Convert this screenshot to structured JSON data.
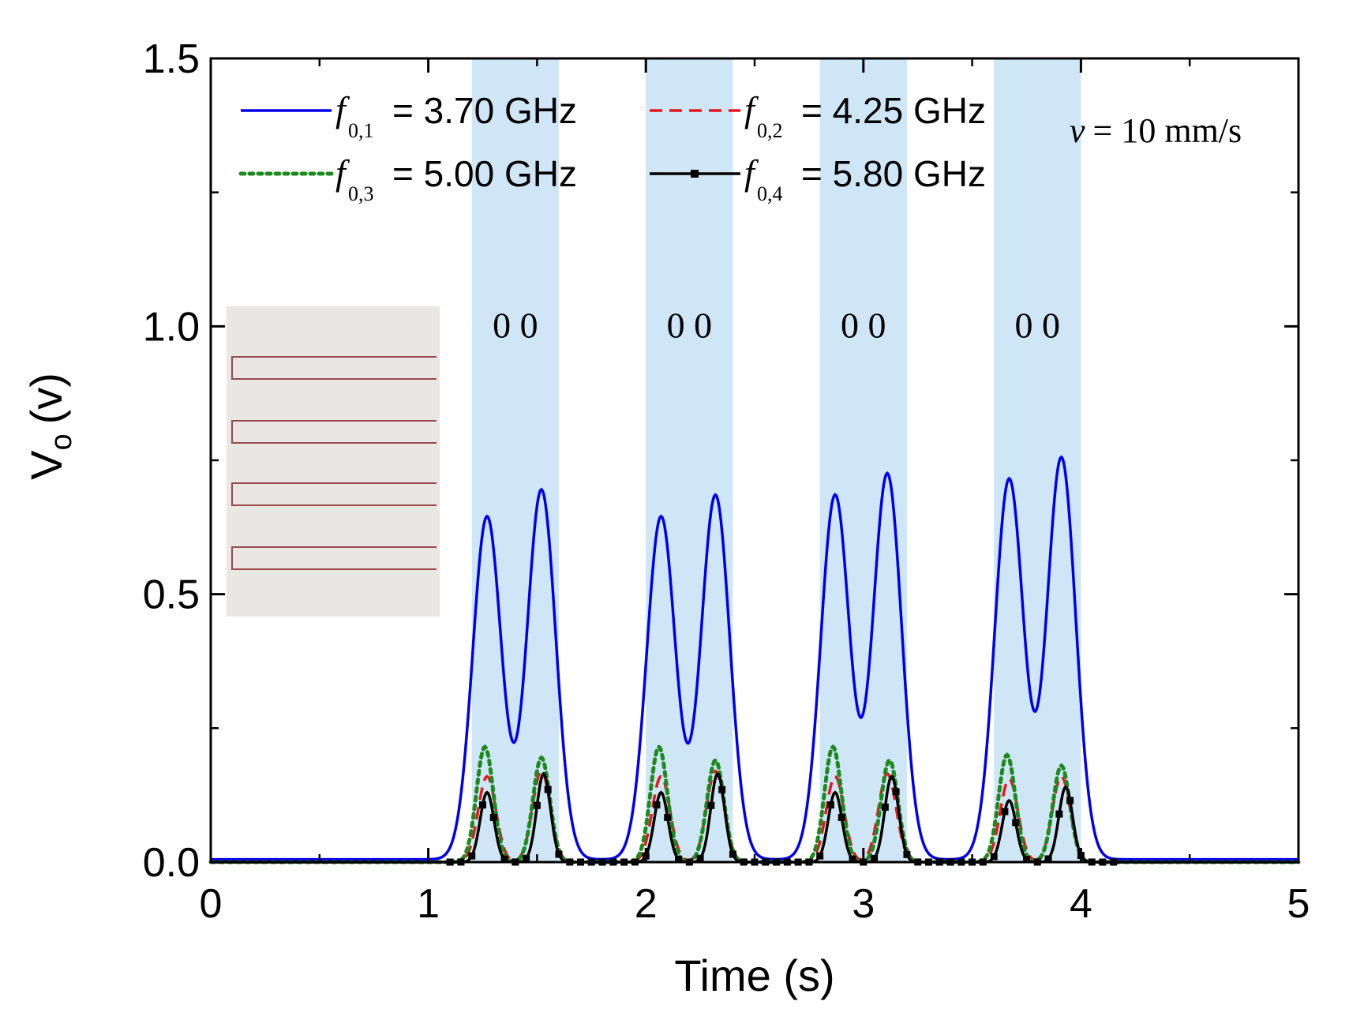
{
  "chart_data": {
    "type": "line",
    "xlabel": "Time (s)",
    "ylabel_main": "V",
    "ylabel_sub": "o",
    "ylabel_unit": "(v)",
    "xlim": [
      0,
      5
    ],
    "ylim": [
      0,
      1.5
    ],
    "xticks": [
      "0",
      "1",
      "2",
      "3",
      "4",
      "5"
    ],
    "yticks": [
      "0.0",
      "0.5",
      "1.0",
      "1.5"
    ],
    "annotation": {
      "var": "v",
      "text": "= 10 mm/s"
    },
    "shaded_regions": [
      [
        1.2,
        1.6
      ],
      [
        2.0,
        2.4
      ],
      [
        2.8,
        3.2
      ],
      [
        3.6,
        4.0
      ]
    ],
    "shade_color": "#cfe6f7",
    "bit_labels": [
      {
        "x": 1.4,
        "y": 1.0,
        "text": "0 0"
      },
      {
        "x": 2.2,
        "y": 1.0,
        "text": "0 0"
      },
      {
        "x": 3.0,
        "y": 1.0,
        "text": "0 0"
      },
      {
        "x": 3.8,
        "y": 1.0,
        "text": "0 0"
      }
    ],
    "series": [
      {
        "name": "f0,1 = 3.70 GHz",
        "sym": "f",
        "sub": "0,1",
        "label": "= 3.70 GHz",
        "color": "#0000ee",
        "dash": "solid",
        "marker": false,
        "baseline": 0.005,
        "width": 0.093,
        "peaks": [
          [
            1.27,
            0.64
          ],
          [
            1.52,
            0.69
          ],
          [
            2.07,
            0.64
          ],
          [
            2.32,
            0.68
          ],
          [
            2.87,
            0.68
          ],
          [
            3.11,
            0.72
          ],
          [
            3.67,
            0.71
          ],
          [
            3.91,
            0.75
          ]
        ]
      },
      {
        "name": "f0,2 = 4.25 GHz",
        "sym": "f",
        "sub": "0,2",
        "label": "= 4.25 GHz",
        "color": "#e8161b",
        "dash": "dashed",
        "marker": false,
        "baseline": 0.0,
        "width": 0.058,
        "peaks": [
          [
            1.27,
            0.16
          ],
          [
            1.52,
            0.17
          ],
          [
            2.07,
            0.16
          ],
          [
            2.32,
            0.17
          ],
          [
            2.87,
            0.16
          ],
          [
            3.11,
            0.165
          ],
          [
            3.67,
            0.155
          ],
          [
            3.91,
            0.16
          ]
        ]
      },
      {
        "name": "f0,3 = 5.00 GHz",
        "sym": "f",
        "sub": "0,3",
        "label": "= 5.00 GHz",
        "color": "#1e8a1e",
        "dash": "dotted",
        "marker": false,
        "baseline": 0.0,
        "width": 0.055,
        "peaks": [
          [
            1.26,
            0.215
          ],
          [
            1.52,
            0.195
          ],
          [
            2.06,
            0.215
          ],
          [
            2.32,
            0.19
          ],
          [
            2.86,
            0.215
          ],
          [
            3.12,
            0.19
          ],
          [
            3.66,
            0.2
          ],
          [
            3.91,
            0.18
          ]
        ]
      },
      {
        "name": "f0,4 = 5.80 GHz",
        "sym": "f",
        "sub": "0,4",
        "label": "= 5.80 GHz",
        "color": "#000000",
        "dash": "solid",
        "marker": true,
        "baseline": 0.0,
        "width": 0.045,
        "peaks": [
          [
            1.27,
            0.13
          ],
          [
            1.53,
            0.165
          ],
          [
            2.07,
            0.13
          ],
          [
            2.33,
            0.165
          ],
          [
            2.87,
            0.13
          ],
          [
            3.13,
            0.16
          ],
          [
            3.67,
            0.115
          ],
          [
            3.93,
            0.14
          ]
        ]
      }
    ]
  }
}
